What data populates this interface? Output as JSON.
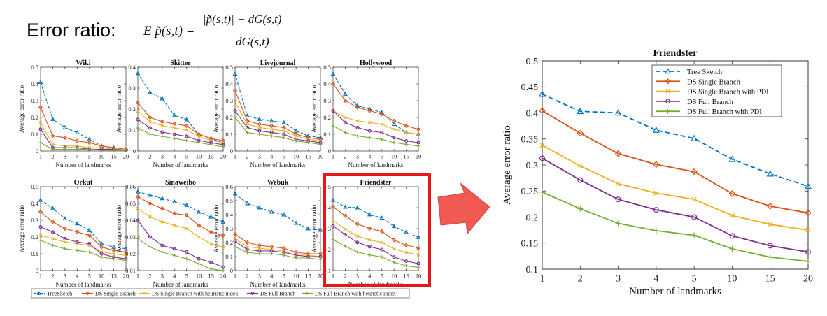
{
  "heading": "Error ratio:",
  "formula": {
    "lhs": "E p̃(s,t) =",
    "numerator": "|p̃(s,t)| − dG(s,t)",
    "denominator": "dG(s,t)"
  },
  "colors": {
    "tree_sketch": "#0072BD",
    "ds_single": "#D95319",
    "ds_single_pdi": "#EDB120",
    "ds_full": "#7E2F8E",
    "ds_full_pdi": "#77AC30",
    "highlight": "#E8161B",
    "arrow": "#F05A52"
  },
  "grid_xlabel": "Number of landmarks",
  "grid_ylabel": "Average error ratio",
  "grid_legend": [
    "TreeSketch",
    "DS Single Branch",
    "DS Single Branch with heuristic index",
    "DS Full Branch",
    "DS Full Branch with heuristic index"
  ],
  "chart_data": [
    {
      "type": "line",
      "title": "Wiki",
      "categories": [
        "1",
        "2",
        "3",
        "4",
        "5",
        "10",
        "15",
        "20"
      ],
      "ylim": [
        0,
        0.5
      ],
      "yticks": [
        "0",
        "0.1",
        "0.2",
        "0.3",
        "0.4",
        "0.5"
      ],
      "series": [
        {
          "name": "TreeSketch",
          "values": [
            0.41,
            0.19,
            0.14,
            0.11,
            0.07,
            0.03,
            0.02,
            0.01
          ]
        },
        {
          "name": "DS Single Branch",
          "values": [
            0.26,
            0.09,
            0.08,
            0.06,
            0.05,
            0.03,
            0.02,
            0.01
          ]
        },
        {
          "name": "DS Single Branch with heuristic index",
          "values": [
            0.17,
            0.04,
            0.03,
            0.03,
            0.02,
            0.02,
            0.01,
            0.01
          ]
        },
        {
          "name": "DS Full Branch",
          "values": [
            0.13,
            0.02,
            0.02,
            0.02,
            0.01,
            0.01,
            0.01,
            0.005
          ]
        },
        {
          "name": "DS Full Branch with heuristic index",
          "values": [
            0.05,
            0.01,
            0.01,
            0.01,
            0.01,
            0.005,
            0.005,
            0.005
          ]
        }
      ]
    },
    {
      "type": "line",
      "title": "Skitter",
      "categories": [
        "1",
        "2",
        "3",
        "4",
        "5",
        "10",
        "15",
        "20"
      ],
      "ylim": [
        0,
        0.4
      ],
      "yticks": [
        "0",
        "0.1",
        "0.2",
        "0.3",
        "0.4"
      ],
      "series": [
        {
          "name": "TreeSketch",
          "values": [
            0.37,
            0.28,
            0.25,
            0.17,
            0.15,
            0.08,
            0.06,
            0.04
          ]
        },
        {
          "name": "DS Single Branch",
          "values": [
            0.23,
            0.16,
            0.14,
            0.13,
            0.12,
            0.08,
            0.06,
            0.05
          ]
        },
        {
          "name": "DS Single Branch with heuristic index",
          "values": [
            0.19,
            0.14,
            0.12,
            0.11,
            0.1,
            0.07,
            0.05,
            0.04
          ]
        },
        {
          "name": "DS Full Branch",
          "values": [
            0.15,
            0.11,
            0.09,
            0.08,
            0.07,
            0.05,
            0.04,
            0.03
          ]
        },
        {
          "name": "DS Full Branch with heuristic index",
          "values": [
            0.11,
            0.08,
            0.07,
            0.06,
            0.05,
            0.04,
            0.03,
            0.02
          ]
        }
      ]
    },
    {
      "type": "line",
      "title": "Livejournal",
      "categories": [
        "1",
        "2",
        "3",
        "4",
        "5",
        "10",
        "15",
        "20"
      ],
      "ylim": [
        0,
        0.5
      ],
      "yticks": [
        "0",
        "0.1",
        "0.2",
        "0.3",
        "0.4",
        "0.5"
      ],
      "series": [
        {
          "name": "TreeSketch",
          "values": [
            0.46,
            0.21,
            0.19,
            0.18,
            0.17,
            0.12,
            0.09,
            0.08
          ]
        },
        {
          "name": "DS Single Branch",
          "values": [
            0.36,
            0.18,
            0.16,
            0.15,
            0.14,
            0.1,
            0.08,
            0.07
          ]
        },
        {
          "name": "DS Single Branch with heuristic index",
          "values": [
            0.29,
            0.16,
            0.14,
            0.13,
            0.12,
            0.09,
            0.07,
            0.06
          ]
        },
        {
          "name": "DS Full Branch",
          "values": [
            0.24,
            0.14,
            0.12,
            0.11,
            0.1,
            0.07,
            0.06,
            0.05
          ]
        },
        {
          "name": "DS Full Branch with heuristic index",
          "values": [
            0.2,
            0.11,
            0.1,
            0.09,
            0.08,
            0.06,
            0.05,
            0.04
          ]
        }
      ]
    },
    {
      "type": "line",
      "title": "Hollywood",
      "categories": [
        "1",
        "2",
        "3",
        "4",
        "5",
        "10",
        "15",
        "20"
      ],
      "ylim": [
        0,
        0.5
      ],
      "yticks": [
        "0",
        "0.1",
        "0.2",
        "0.3",
        "0.4",
        "0.5"
      ],
      "series": [
        {
          "name": "TreeSketch",
          "values": [
            0.46,
            0.34,
            0.27,
            0.25,
            0.23,
            0.16,
            0.11,
            0.1
          ]
        },
        {
          "name": "DS Single Branch",
          "values": [
            0.4,
            0.3,
            0.26,
            0.24,
            0.22,
            0.18,
            0.15,
            0.13
          ]
        },
        {
          "name": "DS Single Branch with heuristic index",
          "values": [
            0.24,
            0.2,
            0.18,
            0.17,
            0.16,
            0.13,
            0.11,
            0.1
          ]
        },
        {
          "name": "DS Full Branch",
          "values": [
            0.24,
            0.17,
            0.14,
            0.12,
            0.11,
            0.08,
            0.06,
            0.05
          ]
        },
        {
          "name": "DS Full Branch with heuristic index",
          "values": [
            0.15,
            0.11,
            0.09,
            0.08,
            0.07,
            0.05,
            0.04,
            0.03
          ]
        }
      ]
    },
    {
      "type": "line",
      "title": "Orkut",
      "categories": [
        "1",
        "2",
        "3",
        "4",
        "5",
        "10",
        "15",
        "20"
      ],
      "ylim": [
        0,
        0.5
      ],
      "yticks": [
        "0",
        "0.1",
        "0.2",
        "0.3",
        "0.4",
        "0.5"
      ],
      "series": [
        {
          "name": "TreeSketch",
          "values": [
            0.42,
            0.37,
            0.31,
            0.28,
            0.24,
            0.16,
            0.14,
            0.13
          ]
        },
        {
          "name": "DS Single Branch",
          "values": [
            0.35,
            0.29,
            0.25,
            0.23,
            0.21,
            0.14,
            0.12,
            0.11
          ]
        },
        {
          "name": "DS Single Branch with heuristic index",
          "values": [
            0.21,
            0.19,
            0.17,
            0.16,
            0.15,
            0.11,
            0.1,
            0.09
          ]
        },
        {
          "name": "DS Full Branch",
          "values": [
            0.26,
            0.23,
            0.19,
            0.17,
            0.16,
            0.1,
            0.08,
            0.07
          ]
        },
        {
          "name": "DS Full Branch with heuristic index",
          "values": [
            0.18,
            0.15,
            0.13,
            0.12,
            0.11,
            0.08,
            0.07,
            0.06
          ]
        }
      ]
    },
    {
      "type": "line",
      "title": "Sinaweibo",
      "categories": [
        "1",
        "2",
        "3",
        "4",
        "5",
        "10",
        "15",
        "20"
      ],
      "ylim": [
        0.01,
        0.06
      ],
      "yticks": [
        "0.01",
        "0.02",
        "0.03",
        "0.04",
        "0.05",
        "0.06"
      ],
      "series": [
        {
          "name": "TreeSketch",
          "values": [
            0.057,
            0.055,
            0.053,
            0.051,
            0.049,
            0.045,
            0.042,
            0.039
          ]
        },
        {
          "name": "DS Single Branch",
          "values": [
            0.054,
            0.05,
            0.047,
            0.044,
            0.043,
            0.037,
            0.033,
            0.031
          ]
        },
        {
          "name": "DS Single Branch with heuristic index",
          "values": [
            0.047,
            0.042,
            0.039,
            0.037,
            0.035,
            0.03,
            0.026,
            0.024
          ]
        },
        {
          "name": "DS Full Branch",
          "values": [
            0.04,
            0.03,
            0.025,
            0.023,
            0.021,
            0.017,
            0.015,
            0.012
          ]
        },
        {
          "name": "DS Full Branch with heuristic index",
          "values": [
            0.029,
            0.024,
            0.021,
            0.019,
            0.017,
            0.014,
            0.011,
            0.01
          ]
        }
      ]
    },
    {
      "type": "line",
      "title": "Webuk",
      "categories": [
        "1",
        "2",
        "3",
        "4",
        "5",
        "10",
        "15",
        "20"
      ],
      "ylim": [
        0,
        0.6
      ],
      "yticks": [
        "0",
        "0.1",
        "0.2",
        "0.3",
        "0.4",
        "0.5",
        "0.6"
      ],
      "series": [
        {
          "name": "TreeSketch",
          "values": [
            0.55,
            0.48,
            0.45,
            0.42,
            0.4,
            0.34,
            0.3,
            0.29
          ]
        },
        {
          "name": "DS Single Branch",
          "values": [
            0.26,
            0.2,
            0.18,
            0.17,
            0.16,
            0.13,
            0.12,
            0.12
          ]
        },
        {
          "name": "DS Single Branch with heuristic index",
          "values": [
            0.23,
            0.17,
            0.16,
            0.15,
            0.14,
            0.11,
            0.11,
            0.1
          ]
        },
        {
          "name": "DS Full Branch",
          "values": [
            0.21,
            0.15,
            0.14,
            0.14,
            0.13,
            0.11,
            0.1,
            0.1
          ]
        },
        {
          "name": "DS Full Branch with heuristic index",
          "values": [
            0.17,
            0.13,
            0.12,
            0.12,
            0.11,
            0.09,
            0.09,
            0.08
          ]
        }
      ]
    },
    {
      "type": "line",
      "title": "Friendster",
      "categories": [
        "1",
        "2",
        "3",
        "4",
        "5",
        "10",
        "15",
        "20"
      ],
      "ylim": [
        0.1,
        0.5
      ],
      "yticks": [
        "0.1",
        "0.2",
        "0.3",
        "0.4",
        "0.5"
      ],
      "series": [
        {
          "name": "TreeSketch",
          "values": [
            0.436,
            0.403,
            0.4,
            0.367,
            0.351,
            0.311,
            0.283,
            0.259
          ]
        },
        {
          "name": "DS Single Branch",
          "values": [
            0.404,
            0.361,
            0.322,
            0.301,
            0.287,
            0.245,
            0.221,
            0.208
          ]
        },
        {
          "name": "DS Single Branch with heuristic index",
          "values": [
            0.338,
            0.298,
            0.264,
            0.246,
            0.234,
            0.203,
            0.186,
            0.175
          ]
        },
        {
          "name": "DS Full Branch",
          "values": [
            0.313,
            0.271,
            0.234,
            0.214,
            0.2,
            0.164,
            0.145,
            0.133
          ]
        },
        {
          "name": "DS Full Branch with heuristic index",
          "values": [
            0.248,
            0.216,
            0.188,
            0.174,
            0.165,
            0.139,
            0.123,
            0.115
          ]
        }
      ]
    },
    {
      "type": "line",
      "title": "Friendster",
      "xlabel": "Number of landmarks",
      "ylabel": "Average error ratio",
      "categories": [
        "1",
        "2",
        "3",
        "4",
        "5",
        "10",
        "15",
        "20"
      ],
      "ylim": [
        0.1,
        0.5
      ],
      "yticks": [
        "0.1",
        "0.15",
        "0.2",
        "0.25",
        "0.3",
        "0.35",
        "0.4",
        "0.45",
        "0.5"
      ],
      "legend_position": "top-right",
      "grid": false,
      "series": [
        {
          "name": "Tree Sketch",
          "values": [
            0.436,
            0.403,
            0.4,
            0.367,
            0.351,
            0.311,
            0.283,
            0.259
          ]
        },
        {
          "name": "DS Single Branch",
          "values": [
            0.404,
            0.361,
            0.322,
            0.301,
            0.287,
            0.245,
            0.221,
            0.208
          ]
        },
        {
          "name": "DS Single Branch with PDI",
          "values": [
            0.338,
            0.298,
            0.264,
            0.246,
            0.234,
            0.203,
            0.186,
            0.175
          ]
        },
        {
          "name": "DS Full Branch",
          "values": [
            0.313,
            0.271,
            0.234,
            0.214,
            0.2,
            0.164,
            0.145,
            0.133
          ]
        },
        {
          "name": "DS Full Branch with PDI",
          "values": [
            0.248,
            0.216,
            0.188,
            0.174,
            0.165,
            0.139,
            0.123,
            0.115
          ]
        }
      ]
    }
  ]
}
